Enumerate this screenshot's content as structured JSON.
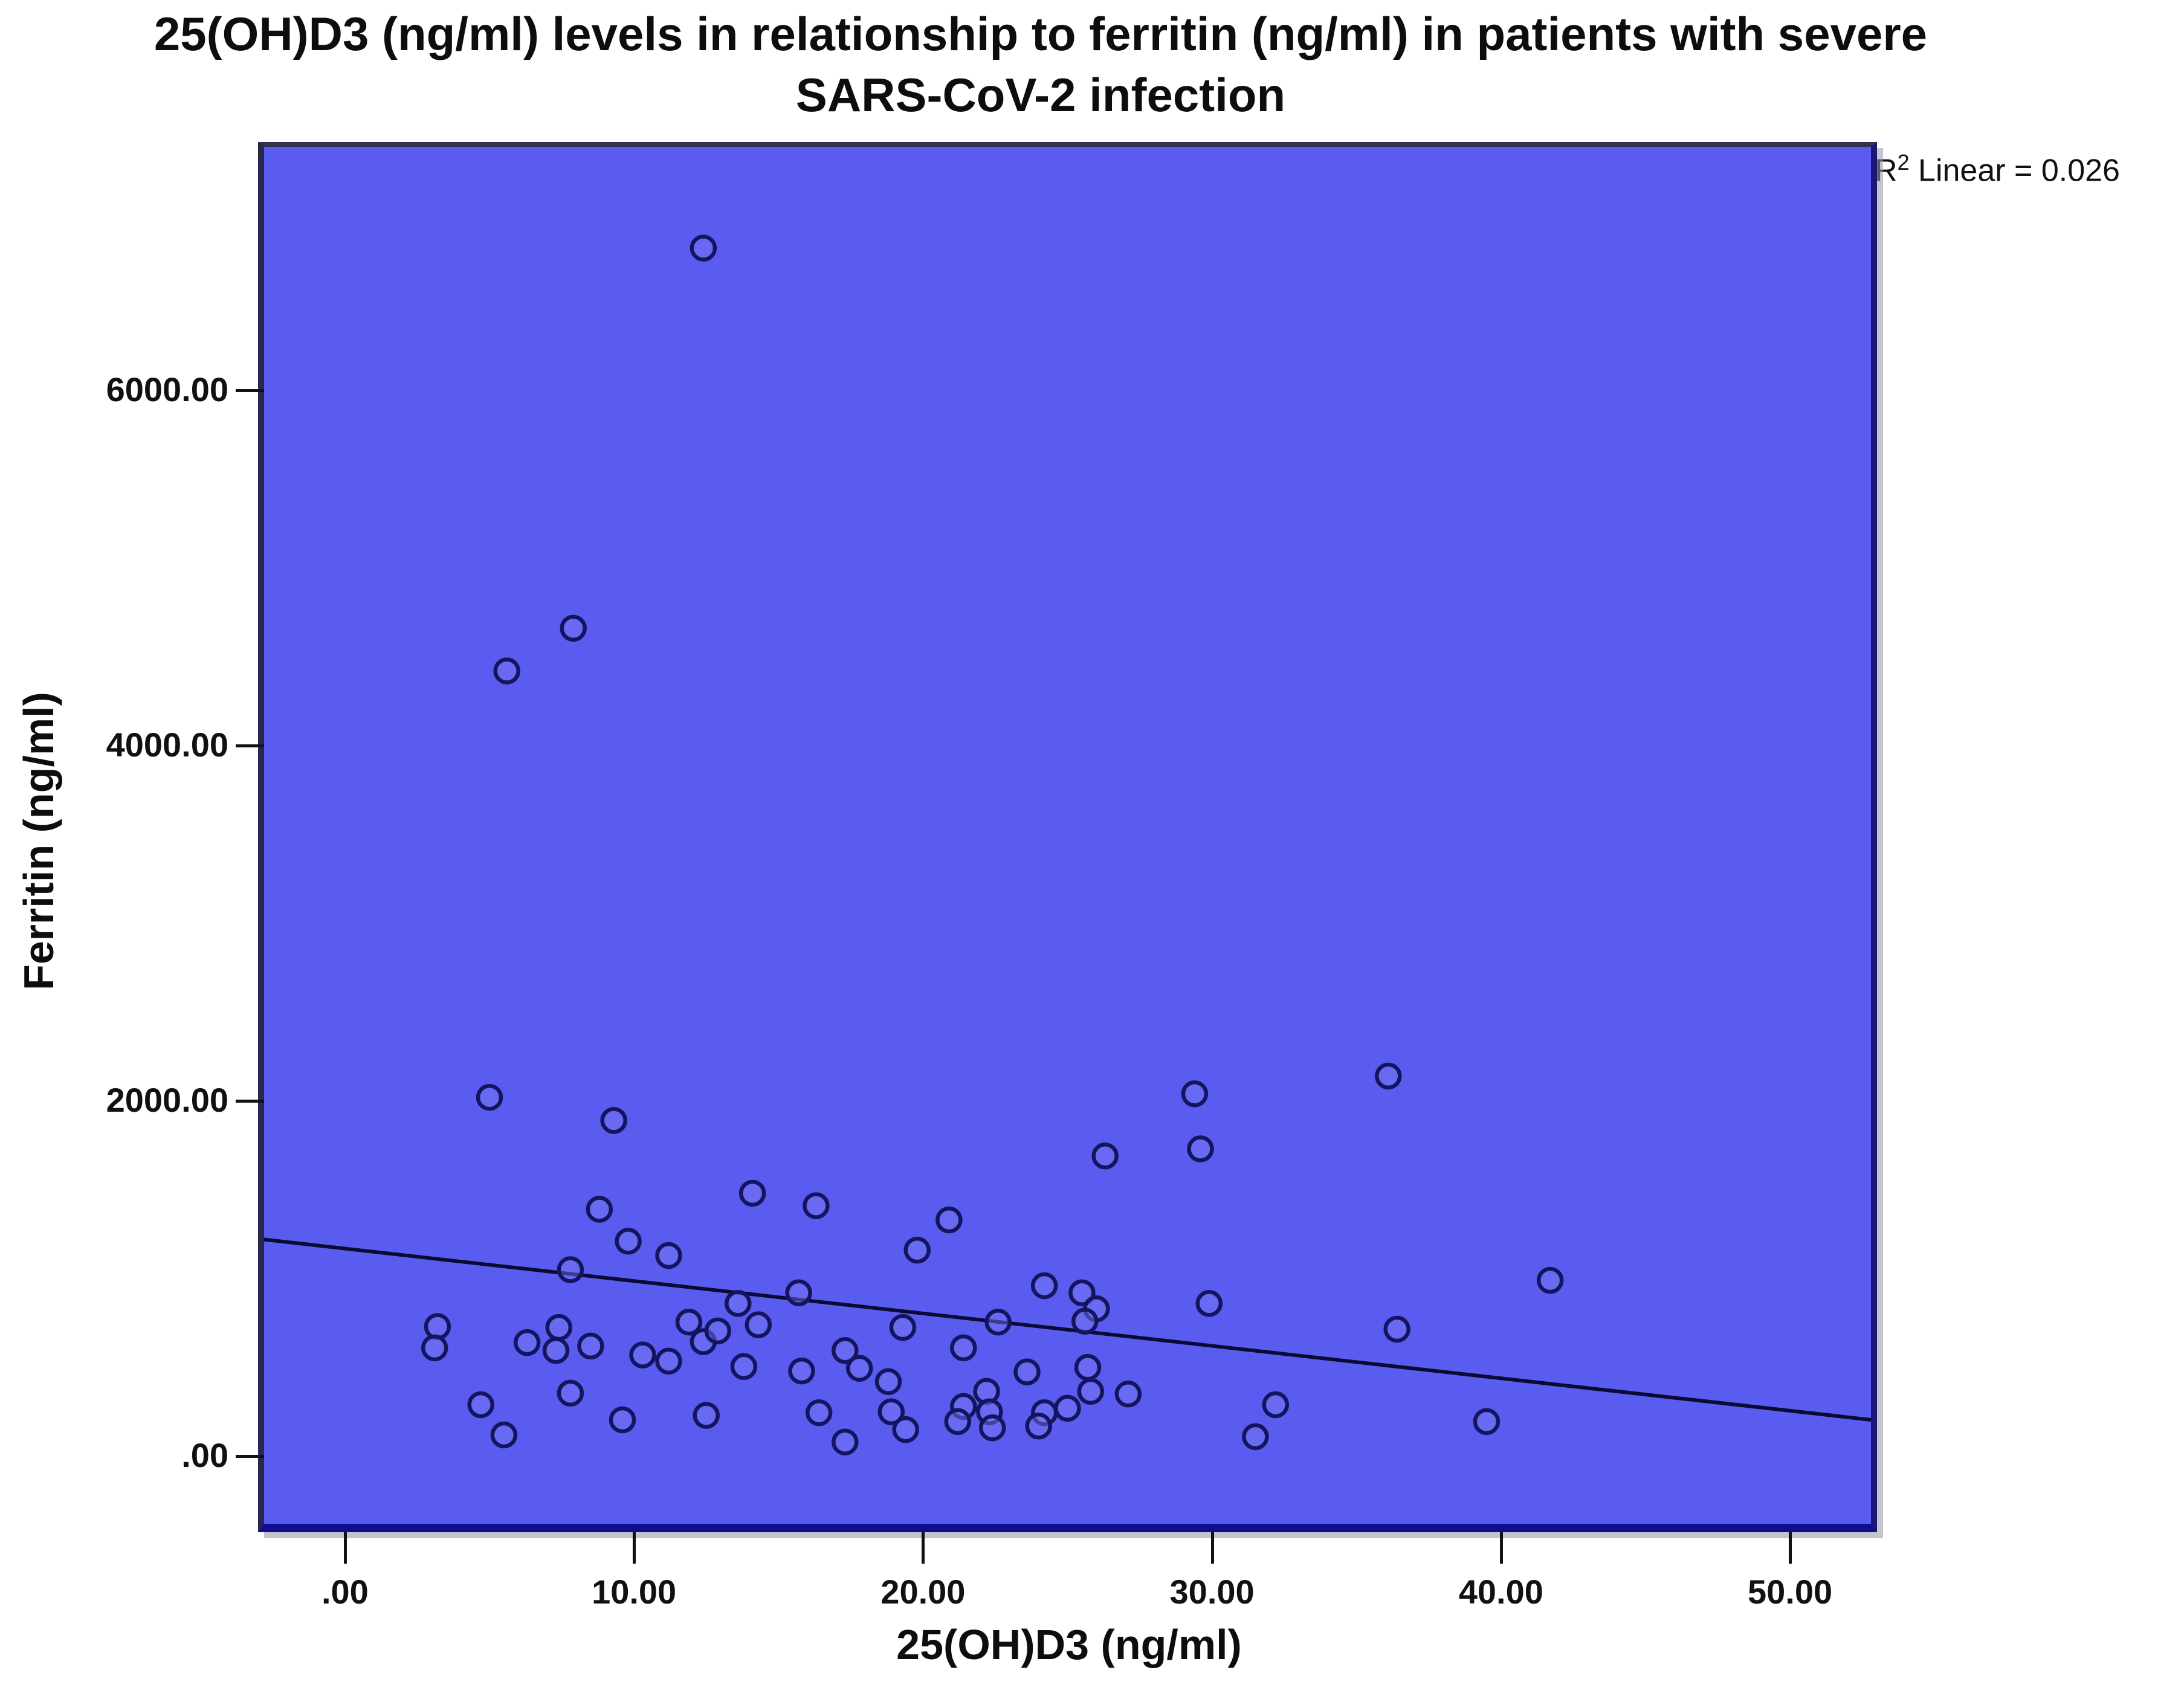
{
  "title": {
    "line1": "25(OH)D3 (ng/ml) levels in relationship to ferritin (ng/ml) in patients with severe",
    "line2": "SARS-CoV-2 infection"
  },
  "annotation": {
    "r2_prefix": "R",
    "r2_sup": "2",
    "r2_rest": " Linear = 0.026"
  },
  "colors": {
    "plot_background": "#5a5cf0",
    "marker_stroke": "#15155f",
    "marker_fill": "#7b7df5",
    "fit_line": "#0a0a33",
    "frame_bottom": "#0f0f8f",
    "text": "#0d0d0d"
  },
  "chart_data": {
    "type": "scatter",
    "title": "25(OH)D3 (ng/ml) levels in relationship to ferritin (ng/ml) in patients with severe SARS-CoV-2 infection",
    "xlabel": "25(OH)D3 (ng/ml)",
    "ylabel": "Ferritin (ng/ml)",
    "r2_linear": 0.026,
    "xlim": [
      -2.8,
      52.8
    ],
    "ylim": [
      -380,
      7370
    ],
    "x_ticks": [
      0,
      10,
      20,
      30,
      40,
      50
    ],
    "x_tick_labels": [
      ".00",
      "10.00",
      "20.00",
      "30.00",
      "40.00",
      "50.00"
    ],
    "y_ticks": [
      0,
      2000,
      4000,
      6000
    ],
    "y_tick_labels": [
      ".00",
      "2000.00",
      "4000.00",
      "6000.00"
    ],
    "grid": false,
    "legend": "none",
    "fit_line": {
      "x1": -2.8,
      "y1": 1220,
      "x2": 52.8,
      "y2": 205
    },
    "points": [
      [
        12.4,
        6800
      ],
      [
        7.9,
        4660
      ],
      [
        5.6,
        4420
      ],
      [
        5.0,
        2020
      ],
      [
        9.3,
        1890
      ],
      [
        29.4,
        2040
      ],
      [
        36.1,
        2140
      ],
      [
        29.6,
        1730
      ],
      [
        26.3,
        1690
      ],
      [
        8.8,
        1390
      ],
      [
        9.8,
        1210
      ],
      [
        11.2,
        1130
      ],
      [
        14.1,
        1480
      ],
      [
        16.3,
        1410
      ],
      [
        20.9,
        1330
      ],
      [
        19.8,
        1160
      ],
      [
        7.8,
        1050
      ],
      [
        41.7,
        990
      ],
      [
        24.2,
        960
      ],
      [
        25.5,
        920
      ],
      [
        26.0,
        830
      ],
      [
        25.6,
        760
      ],
      [
        29.9,
        860
      ],
      [
        15.7,
        920
      ],
      [
        36.4,
        715
      ],
      [
        3.2,
        730
      ],
      [
        3.1,
        610
      ],
      [
        6.3,
        640
      ],
      [
        7.4,
        725
      ],
      [
        7.3,
        595
      ],
      [
        8.5,
        620
      ],
      [
        10.3,
        570
      ],
      [
        11.2,
        535
      ],
      [
        11.9,
        755
      ],
      [
        12.4,
        645
      ],
      [
        12.9,
        705
      ],
      [
        13.6,
        860
      ],
      [
        14.3,
        740
      ],
      [
        13.8,
        505
      ],
      [
        19.3,
        725
      ],
      [
        22.6,
        755
      ],
      [
        21.4,
        610
      ],
      [
        17.3,
        595
      ],
      [
        17.8,
        495
      ],
      [
        15.8,
        480
      ],
      [
        18.8,
        420
      ],
      [
        23.6,
        475
      ],
      [
        25.7,
        500
      ],
      [
        4.7,
        290
      ],
      [
        5.5,
        120
      ],
      [
        7.8,
        355
      ],
      [
        9.6,
        205
      ],
      [
        12.5,
        230
      ],
      [
        16.4,
        245
      ],
      [
        17.3,
        80
      ],
      [
        18.9,
        250
      ],
      [
        19.4,
        150
      ],
      [
        21.4,
        280
      ],
      [
        21.2,
        195
      ],
      [
        22.2,
        365
      ],
      [
        22.3,
        250
      ],
      [
        22.4,
        160
      ],
      [
        24.2,
        245
      ],
      [
        24.0,
        170
      ],
      [
        25.0,
        270
      ],
      [
        25.8,
        365
      ],
      [
        27.1,
        350
      ],
      [
        32.2,
        290
      ],
      [
        31.5,
        110
      ],
      [
        39.5,
        195
      ]
    ]
  }
}
